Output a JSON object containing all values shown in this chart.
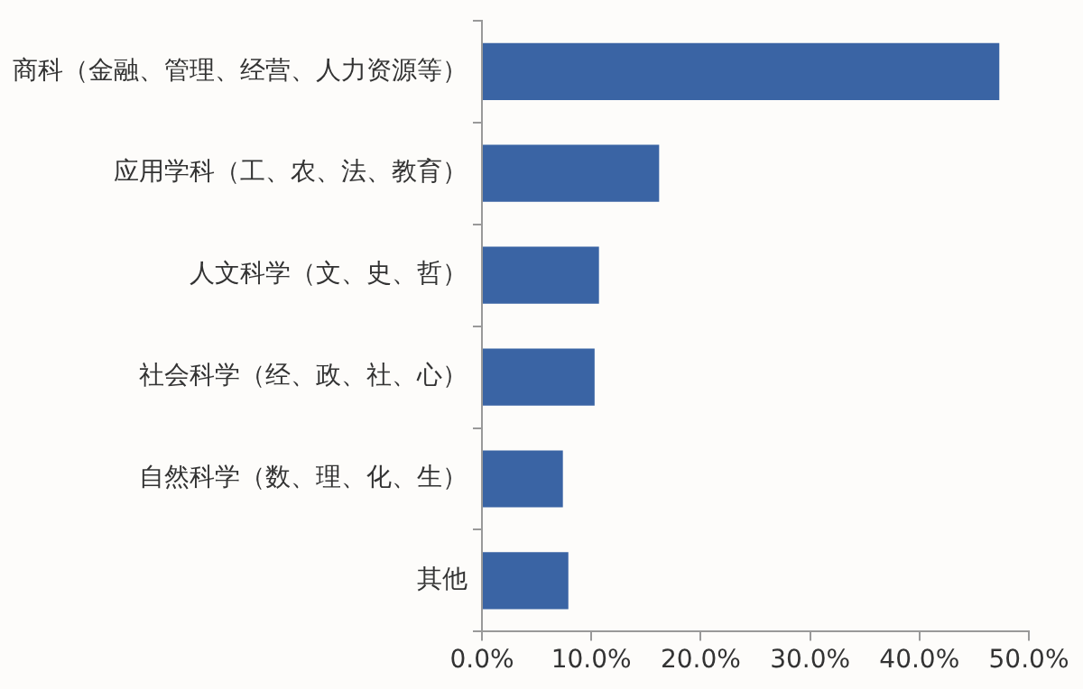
{
  "chart_data": {
    "type": "bar",
    "orientation": "horizontal",
    "categories": [
      "商科（金融、管理、经营、人力资源等）",
      "应用学科（工、农、法、教育）",
      "人文科学（文、史、哲）",
      "社会科学（经、政、社、心）",
      "自然科学（数、理、化、生）",
      "其他"
    ],
    "values": [
      47.3,
      16.2,
      10.7,
      10.3,
      7.4,
      7.9
    ],
    "color": "#3a64a4",
    "xlim": [
      0,
      50
    ],
    "xticks": [
      {
        "value": 0,
        "label": "0.0%"
      },
      {
        "value": 10,
        "label": "10.0%"
      },
      {
        "value": 20,
        "label": "20.0%"
      },
      {
        "value": 30,
        "label": "30.0%"
      },
      {
        "value": 40,
        "label": "40.0%"
      },
      {
        "value": 50,
        "label": "50.0%"
      }
    ],
    "grid": false,
    "legend": false
  }
}
